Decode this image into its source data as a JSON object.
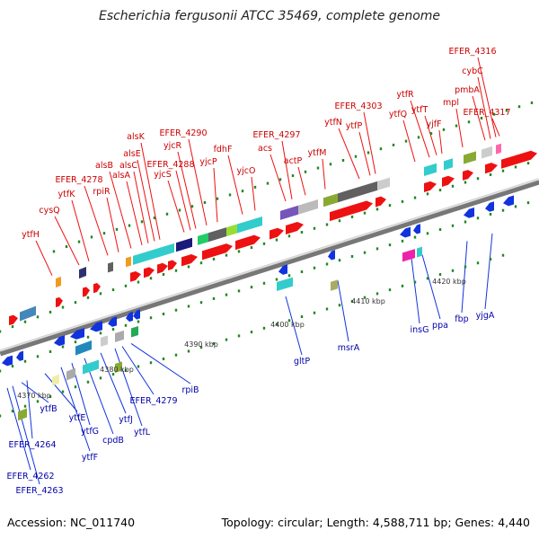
{
  "title": "Escherichia fergusonii ATCC 35469, complete genome",
  "footer": {
    "accession": "Accession: NC_011740",
    "stats": "Topology: circular; Length: 4,588,711 bp; Genes: 4,440"
  },
  "colors": {
    "forward_gene": "#ee1111",
    "reverse_gene": "#1133dd",
    "forward_label": "#cc0000",
    "reverse_label": "#0000aa",
    "backbone": "#888888",
    "tick": "#228822"
  },
  "scale_labels": [
    "4370 kbp",
    "4380 kbp",
    "4390 kbp",
    "4400 kbp",
    "4410 kbp",
    "4420 kbp"
  ],
  "forward_genes": [
    "ytfH",
    "cysQ",
    "ytfK",
    "EFER_4278",
    "rpiR",
    "alsB",
    "alsA",
    "alsC",
    "alsE",
    "alsK",
    "yjcS",
    "EFER_4288",
    "yjcR",
    "EFER_4290",
    "yjcP",
    "fdhF",
    "yjcO",
    "acs",
    "EFER_4297",
    "actP",
    "ytfM",
    "ytfN",
    "ytfP",
    "EFER_4303",
    "ytfQ",
    "ytfR",
    "ytfT",
    "yjfF",
    "mpl",
    "pmbA",
    "cybC",
    "EFER_4316",
    "EFER_4317"
  ],
  "reverse_genes": [
    "EFER_4262",
    "EFER_4263",
    "EFER_4264",
    "ytfB",
    "ytfE",
    "ytfF",
    "ytfG",
    "cpdB",
    "ytfJ",
    "ytfL",
    "EFER_4279",
    "rpiB",
    "gltP",
    "msrA",
    "insG",
    "ppa",
    "fbp",
    "yjgA"
  ]
}
